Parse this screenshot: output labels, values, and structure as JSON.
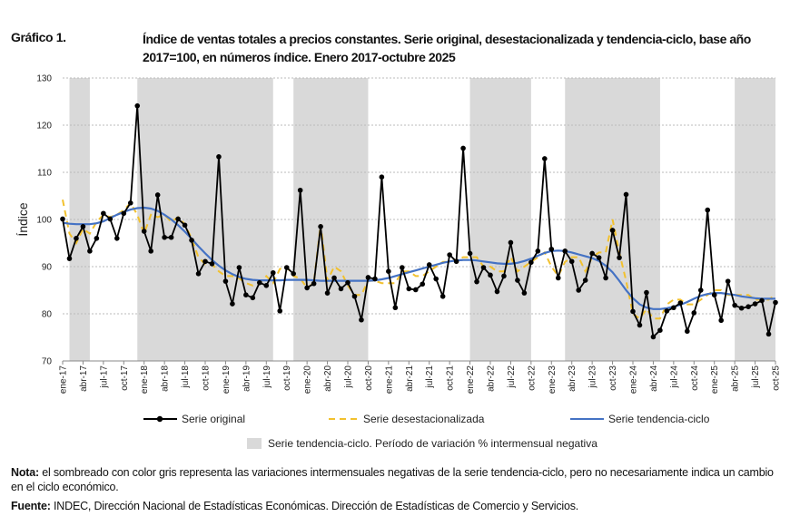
{
  "figure_label": "Gráfico 1.",
  "title": "Índice de ventas totales a precios constantes. Serie original, desestacionalizada y tendencia-ciclo, base año 2017=100, en números índice. Enero 2017-octubre 2025",
  "note_label": "Nota:",
  "note_text": " el sombreado con color gris representa las variaciones intermensuales negativas de la serie tendencia-ciclo, pero no necesariamente indica un cambio en el ciclo económico.",
  "source_label": "Fuente:",
  "source_text": " INDEC, Dirección Nacional de Estadísticas Económicas. Dirección de Estadísticas de Comercio y Servicios.",
  "chart_data": {
    "type": "line",
    "ylabel": "Índice",
    "xlabel": "",
    "ylim": [
      70,
      130
    ],
    "yticks": [
      70,
      80,
      90,
      100,
      110,
      120,
      130
    ],
    "grid": "horizontal dotted",
    "legend_placement": "bottom",
    "start": "ene-17",
    "end": "oct-25",
    "x_tick_labels": [
      "ene-17",
      "abr-17",
      "jul-17",
      "oct-17",
      "ene-18",
      "abr-18",
      "jul-18",
      "oct-18",
      "ene-19",
      "abr-19",
      "jul-19",
      "oct-19",
      "ene-20",
      "abr-20",
      "jul-20",
      "oct-20",
      "ene-21",
      "abr-21",
      "jul-21",
      "oct-21",
      "ene-22",
      "abr-22",
      "jul-22",
      "oct-22",
      "ene-23",
      "abr-23",
      "jul-23",
      "oct-23",
      "ene-24",
      "abr-24",
      "jul-24",
      "oct-24",
      "ene-25",
      "abr-25",
      "jul-25",
      "oct-25"
    ],
    "series": [
      {
        "name": "Serie original",
        "color": "#000000",
        "style": "solid-markers",
        "values": [
          100.1,
          91.7,
          96,
          98.5,
          93.3,
          96,
          101.3,
          100.1,
          96,
          101.3,
          103.5,
          124.1,
          97.5,
          93.3,
          105.2,
          96.2,
          96.2,
          100.1,
          98.8,
          95.6,
          88.5,
          91.1,
          90.6,
          113.3,
          86.9,
          82.1,
          89.8,
          84,
          83.4,
          86.6,
          86,
          88.7,
          80.6,
          89.8,
          88.5,
          106.2,
          85.5,
          86.4,
          98.5,
          84.4,
          87.6,
          85.3,
          86.6,
          83.7,
          78.7,
          87.7,
          87.4,
          109,
          89,
          81.3,
          89.8,
          85.3,
          85.1,
          86.3,
          90.4,
          87.4,
          83.7,
          92.5,
          91.1,
          115.1,
          92.8,
          86.8,
          89.8,
          88.2,
          84.7,
          88,
          95.1,
          87.1,
          84.4,
          90.9,
          93.3,
          112.9,
          93.7,
          87.6,
          93.3,
          91.1,
          85,
          87.1,
          92.8,
          91.9,
          87.6,
          97.7,
          91.9,
          105.3,
          80.5,
          77.6,
          84.5,
          75.1,
          76.5,
          80.6,
          81.3,
          82.3,
          76.3,
          80.2,
          85,
          102,
          84,
          78.6,
          86.9,
          81.8,
          81.2,
          81.5,
          82.1,
          82.8,
          75.7,
          82.4
        ]
      },
      {
        "name": "Serie desestacionalizada",
        "color": "#F2C12E",
        "style": "dashed",
        "values": [
          104.2,
          97,
          95,
          98,
          97,
          99.5,
          101,
          100.5,
          101,
          102,
          103.5,
          101,
          97,
          101,
          100.5,
          101,
          99.5,
          100.5,
          99,
          96,
          92,
          90.5,
          90.5,
          89,
          88,
          88,
          87.5,
          86.5,
          86,
          86.5,
          88,
          86.5,
          89.5,
          90,
          88,
          87.5,
          85.5,
          86.5,
          99,
          87,
          90,
          89,
          86,
          84,
          84,
          87,
          87,
          86.5,
          86.5,
          86.5,
          89,
          89,
          88,
          88,
          89,
          90,
          91,
          91,
          91.5,
          92,
          92,
          92,
          90,
          90,
          89,
          89,
          92,
          89,
          90,
          91,
          92,
          93,
          90,
          88,
          91,
          92,
          92,
          89,
          92,
          93,
          93,
          100,
          93,
          87,
          80,
          79,
          81,
          79,
          79,
          82,
          83,
          83,
          82,
          82,
          83,
          84,
          85,
          85,
          84,
          84,
          84,
          84,
          83,
          83,
          83,
          84
        ]
      },
      {
        "name": "Serie tendencia-ciclo",
        "color": "#4472C4",
        "style": "solid",
        "values": [
          99.3,
          99.1,
          99.0,
          99.0,
          99.0,
          99.2,
          99.6,
          100.3,
          101.0,
          101.6,
          102.1,
          102.4,
          102.5,
          102.3,
          101.8,
          101.0,
          100.0,
          98.8,
          97.4,
          95.9,
          94.3,
          92.8,
          91.4,
          90.2,
          89.2,
          88.4,
          87.8,
          87.4,
          87.2,
          87.1,
          87.1,
          87.1,
          87.1,
          87.2,
          87.2,
          87.2,
          87.2,
          87.1,
          87.0,
          87.0,
          87.0,
          87.0,
          87.0,
          87.0,
          87.0,
          87.0,
          87.1,
          87.3,
          87.6,
          88.0,
          88.4,
          88.8,
          89.2,
          89.6,
          90.0,
          90.4,
          90.8,
          91.1,
          91.3,
          91.4,
          91.4,
          91.3,
          91.1,
          90.9,
          90.7,
          90.6,
          90.6,
          90.8,
          91.2,
          91.7,
          92.3,
          92.9,
          93.3,
          93.4,
          93.3,
          93.0,
          92.6,
          92.2,
          91.8,
          91.2,
          90.2,
          88.8,
          87.0,
          85.0,
          83.3,
          82.0,
          81.3,
          81.0,
          81.0,
          81.2,
          81.5,
          81.9,
          82.5,
          83.2,
          83.8,
          84.2,
          84.4,
          84.4,
          84.2,
          84.0,
          83.7,
          83.5,
          83.3,
          83.2,
          83.2,
          83.2
        ]
      }
    ],
    "shaded_periods": {
      "label": "Serie tendencia-ciclo. Período de variación % intermensual negativa",
      "color": "#D9D9D9",
      "ranges": [
        [
          "feb-17",
          "may-17"
        ],
        [
          "dic-17",
          "ago-19"
        ],
        [
          "nov-19",
          "oct-20"
        ],
        [
          "ene-22",
          "oct-22"
        ],
        [
          "mar-23",
          "may-24"
        ],
        [
          "abr-25",
          "oct-25"
        ]
      ]
    }
  }
}
